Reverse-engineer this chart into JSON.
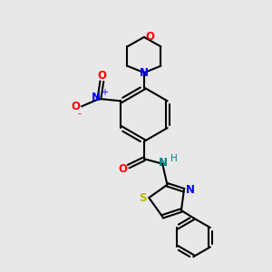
{
  "background_color": "#e8e8e8",
  "bond_color": "#000000",
  "colors": {
    "O": "#ff0000",
    "N": "#0000ff",
    "S": "#b8b800",
    "NH": "#008080"
  },
  "figsize": [
    3.0,
    3.0
  ],
  "dpi": 100
}
